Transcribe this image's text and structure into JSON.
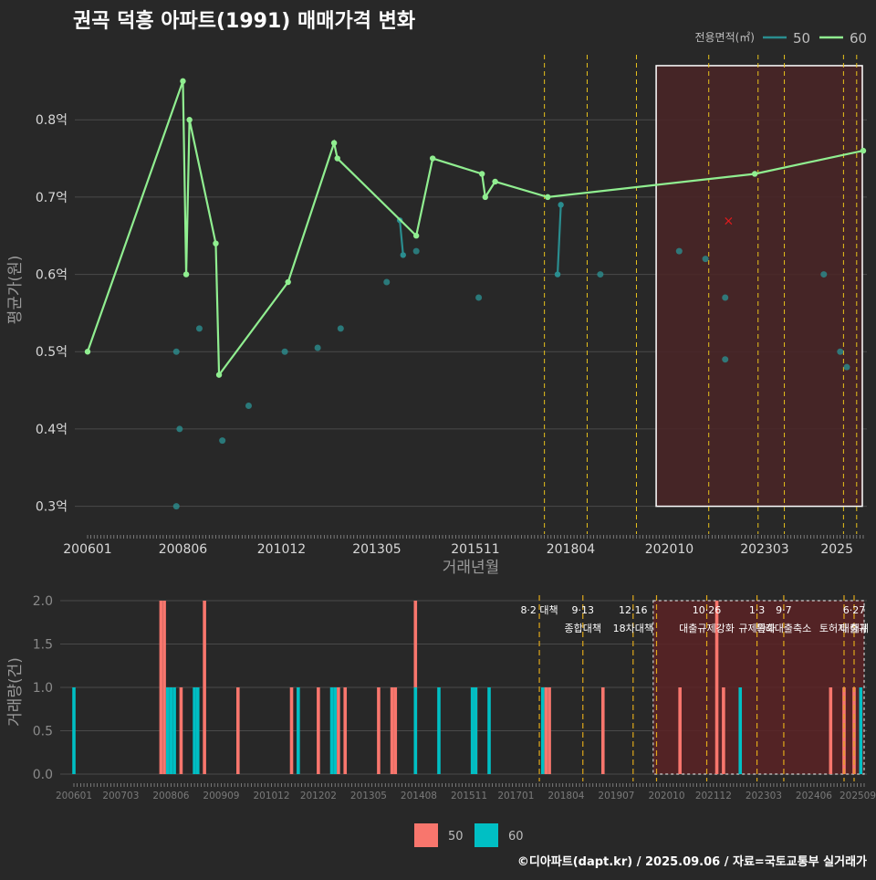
{
  "title": "권곡 덕흥 아파트(1991) 매매가격 변화",
  "footer": "©디아파트(dapt.kr) / 2025.09.06 / 자료=국토교통부 실거래가",
  "colors": {
    "background": "#282828",
    "grid": "#4a4a4a",
    "series_50_line": "#2a8d8f",
    "series_60_line": "#90ee90",
    "bar_50": "#f8766d",
    "bar_60": "#00bfc4",
    "policy_line": "#e8c21c",
    "highlight_fill": "#4a2426",
    "highlight_border": "#ffffff",
    "marker_x": "#e31a1c"
  },
  "chart_data": [
    {
      "type": "line",
      "title": "권곡 덕흥 아파트(1991) 매매가격 변화",
      "xlabel": "거래년월",
      "ylabel": "평균가(원)",
      "x_ticks": [
        "200601",
        "200806",
        "201012",
        "201305",
        "201511",
        "201804",
        "202010",
        "202303",
        "2025"
      ],
      "y_ticks": [
        {
          "value": 0.3,
          "label": "0.3억"
        },
        {
          "value": 0.4,
          "label": "0.4억"
        },
        {
          "value": 0.5,
          "label": "0.5억"
        },
        {
          "value": 0.6,
          "label": "0.6억"
        },
        {
          "value": 0.7,
          "label": "0.7억"
        },
        {
          "value": 0.8,
          "label": "0.8억"
        }
      ],
      "xlim": [
        "2006-01",
        "2025-09"
      ],
      "ylim": [
        0.27,
        0.89
      ],
      "grid": true,
      "legend": {
        "title": "전용면적(㎡)",
        "position": "top-right",
        "entries": [
          "50",
          "60"
        ]
      },
      "series": [
        {
          "name": "50",
          "points": [
            {
              "x": "2013-12",
              "y": 0.67
            },
            {
              "x": "2014-01",
              "y": 0.625
            }
          ]
        },
        {
          "name": "50",
          "points": [
            {
              "x": "2017-12",
              "y": 0.6
            },
            {
              "x": "2018-01",
              "y": 0.69
            }
          ]
        },
        {
          "name": "60",
          "points": [
            {
              "x": "2006-01",
              "y": 0.5
            },
            {
              "x": "2008-06",
              "y": 0.85
            },
            {
              "x": "2008-07",
              "y": 0.6
            },
            {
              "x": "2008-08",
              "y": 0.8
            },
            {
              "x": "2009-04",
              "y": 0.64
            },
            {
              "x": "2009-05",
              "y": 0.47
            },
            {
              "x": "2011-02",
              "y": 0.59
            },
            {
              "x": "2012-04",
              "y": 0.77
            },
            {
              "x": "2012-05",
              "y": 0.75
            },
            {
              "x": "2014-05",
              "y": 0.65
            },
            {
              "x": "2014-10",
              "y": 0.75
            },
            {
              "x": "2016-01",
              "y": 0.73
            },
            {
              "x": "2016-02",
              "y": 0.7
            },
            {
              "x": "2016-05",
              "y": 0.72
            },
            {
              "x": "2017-09",
              "y": 0.7
            },
            {
              "x": "2022-12",
              "y": 0.73
            },
            {
              "x": "2025-09",
              "y": 0.76
            }
          ]
        }
      ],
      "scatter": [
        {
          "x": "2008-04",
          "y": 0.5
        },
        {
          "x": "2008-05",
          "y": 0.4
        },
        {
          "x": "2008-04",
          "y": 0.3
        },
        {
          "x": "2008-11",
          "y": 0.53
        },
        {
          "x": "2009-06",
          "y": 0.385
        },
        {
          "x": "2010-02",
          "y": 0.43
        },
        {
          "x": "2011-01",
          "y": 0.5
        },
        {
          "x": "2011-11",
          "y": 0.505
        },
        {
          "x": "2012-06",
          "y": 0.53
        },
        {
          "x": "2013-08",
          "y": 0.59
        },
        {
          "x": "2014-05",
          "y": 0.63
        },
        {
          "x": "2015-12",
          "y": 0.57
        },
        {
          "x": "2019-01",
          "y": 0.6
        },
        {
          "x": "2021-01",
          "y": 0.63
        },
        {
          "x": "2021-09",
          "y": 0.62
        },
        {
          "x": "2022-03",
          "y": 0.57
        },
        {
          "x": "2022-03",
          "y": 0.49
        },
        {
          "x": "2024-09",
          "y": 0.6
        },
        {
          "x": "2025-02",
          "y": 0.5
        },
        {
          "x": "2025-04",
          "y": 0.48
        }
      ],
      "x_marker": {
        "x": "2022-04",
        "y": 0.67
      },
      "policy_dates": [
        "2017-08",
        "2018-09",
        "2019-12",
        "2021-10",
        "2023-01",
        "2023-09",
        "2025-03",
        "2025-07"
      ],
      "highlight_range": {
        "x": [
          "2020-06",
          "2025-09"
        ],
        "y": [
          0.3,
          0.87
        ]
      }
    },
    {
      "type": "bar",
      "ylabel": "거래량(건)",
      "x_ticks": [
        "200601",
        "200703",
        "200806",
        "200909",
        "201012",
        "201202",
        "201305",
        "201408",
        "201511",
        "201701",
        "201804",
        "201907",
        "202010",
        "202112",
        "202303",
        "202406",
        "202509"
      ],
      "y_ticks": [
        "0.0",
        "0.5",
        "1.0",
        "1.5",
        "2.0"
      ],
      "ylim": [
        0,
        2
      ],
      "legend": {
        "position": "bottom",
        "entries": [
          "50",
          "60"
        ]
      },
      "series": [
        {
          "name": "50",
          "bars": [
            {
              "x": "2008-03",
              "y": 2
            },
            {
              "x": "2008-04",
              "y": 2
            },
            {
              "x": "2008-09",
              "y": 1
            },
            {
              "x": "2009-04",
              "y": 2
            },
            {
              "x": "2010-02",
              "y": 1
            },
            {
              "x": "2011-06",
              "y": 1
            },
            {
              "x": "2012-02",
              "y": 1
            },
            {
              "x": "2012-08",
              "y": 1
            },
            {
              "x": "2012-10",
              "y": 1
            },
            {
              "x": "2013-08",
              "y": 1
            },
            {
              "x": "2013-12",
              "y": 1
            },
            {
              "x": "2014-01",
              "y": 1
            },
            {
              "x": "2014-07",
              "y": 2
            },
            {
              "x": "2016-01",
              "y": 1
            },
            {
              "x": "2017-10",
              "y": 1
            },
            {
              "x": "2017-11",
              "y": 1
            },
            {
              "x": "2019-03",
              "y": 1
            },
            {
              "x": "2021-02",
              "y": 1
            },
            {
              "x": "2022-01",
              "y": 2
            },
            {
              "x": "2022-03",
              "y": 1
            },
            {
              "x": "2024-11",
              "y": 1
            },
            {
              "x": "2025-03",
              "y": 1
            },
            {
              "x": "2025-06",
              "y": 1
            }
          ]
        },
        {
          "name": "60",
          "bars": [
            {
              "x": "2006-01",
              "y": 1
            },
            {
              "x": "2008-05",
              "y": 1
            },
            {
              "x": "2008-06",
              "y": 1
            },
            {
              "x": "2008-07",
              "y": 1
            },
            {
              "x": "2009-01",
              "y": 1
            },
            {
              "x": "2009-02",
              "y": 1
            },
            {
              "x": "2011-08",
              "y": 1
            },
            {
              "x": "2012-06",
              "y": 1
            },
            {
              "x": "2012-07",
              "y": 1
            },
            {
              "x": "2014-07",
              "y": 1
            },
            {
              "x": "2015-02",
              "y": 1
            },
            {
              "x": "2015-12",
              "y": 1
            },
            {
              "x": "2016-01",
              "y": 1
            },
            {
              "x": "2016-05",
              "y": 1
            },
            {
              "x": "2017-09",
              "y": 1
            },
            {
              "x": "2022-08",
              "y": 1
            },
            {
              "x": "2025-08",
              "y": 1
            }
          ]
        }
      ],
      "policy_events": [
        {
          "date": "2017-08",
          "label": "8·2 대책",
          "label2": ""
        },
        {
          "date": "2018-09",
          "label": "9·13",
          "label2": "종합대책"
        },
        {
          "date": "2019-12",
          "label": "12·16",
          "label2": "18차대책"
        },
        {
          "date": "2020-07",
          "label": "",
          "label2": ""
        },
        {
          "date": "2021-10",
          "label": "10·26",
          "label2": "대출규제강화"
        },
        {
          "date": "2023-01",
          "label": "1·3",
          "label2": "규제완화"
        },
        {
          "date": "2023-09",
          "label": "9·7",
          "label2": "특례대출축소"
        },
        {
          "date": "2025-03",
          "label": "",
          "label2": "토허제 해제"
        },
        {
          "date": "2025-06",
          "label": "6·27",
          "label2": "대출규"
        }
      ],
      "highlight_range": {
        "x": [
          "2020-06",
          "2025-09"
        ],
        "y": [
          0,
          2
        ]
      }
    }
  ]
}
